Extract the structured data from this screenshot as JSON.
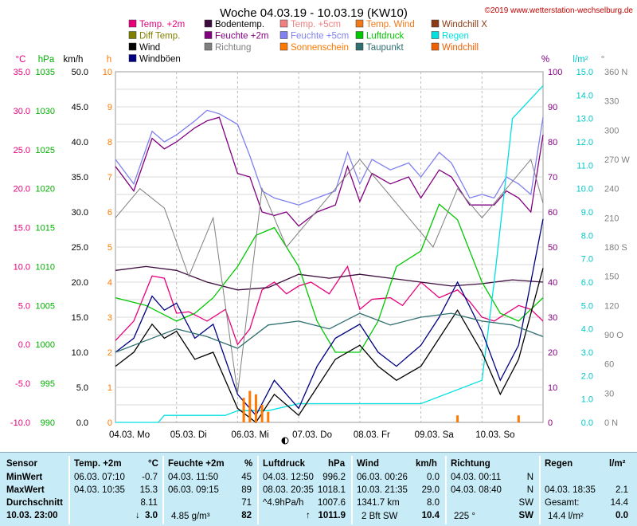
{
  "header": {
    "title": "Woche 04.03.19 - 10.03.19 (KW10)",
    "copyright": "©2019 www.wetterstation-wechselburg.de"
  },
  "legend": [
    {
      "label": "Temp. +2m",
      "color": "#e8007a"
    },
    {
      "label": "Bodentemp.",
      "color": "#3c0a3c"
    },
    {
      "label": "Temp. +5cm",
      "color": "#f08080"
    },
    {
      "label": "Temp. Wind",
      "color": "#f07818"
    },
    {
      "label": "Windchill X",
      "color": "#8b3a14"
    },
    {
      "label": "Diff Temp.",
      "color": "#808000"
    },
    {
      "label": "Feuchte +2m",
      "color": "#800080"
    },
    {
      "label": "Feuchte +5cm",
      "color": "#8080f0"
    },
    {
      "label": "Luftdruck",
      "color": "#00c800"
    },
    {
      "label": "Regen",
      "color": "#00e0e0"
    },
    {
      "label": "Wind",
      "color": "#000000"
    },
    {
      "label": "Richtung",
      "color": "#808080"
    },
    {
      "label": "Sonnenschein",
      "color": "#ff7800"
    },
    {
      "label": "Taupunkt",
      "color": "#2f6f6f"
    },
    {
      "label": "Windchill",
      "color": "#f06000"
    },
    {
      "label": "Windböen",
      "color": "#000080"
    }
  ],
  "chart_data": {
    "type": "line",
    "title": "Woche 04.03.19 - 10.03.19 (KW10)",
    "x_labels": [
      "04.03. Mo",
      "05.03. Di",
      "06.03. Mi",
      "07.03. Do",
      "08.03. Fr",
      "09.03. Sa",
      "10.03. So"
    ],
    "axes": {
      "temp_c": {
        "unit": "°C",
        "color": "#e8007a",
        "ticks": [
          "35.0",
          "30.0",
          "25.0",
          "20.0",
          "15.0",
          "10.0",
          "5.0",
          "0.0",
          "-5.0",
          "-10.0"
        ]
      },
      "pressure_hpa": {
        "unit": "hPa",
        "color": "#00b000",
        "ticks": [
          "1035",
          "1030",
          "1025",
          "1020",
          "1015",
          "1010",
          "1005",
          "1000",
          "995",
          "990"
        ]
      },
      "wind_kmh": {
        "unit": "km/h",
        "color": "#000000",
        "ticks": [
          "50.0",
          "45.0",
          "40.0",
          "35.0",
          "30.0",
          "25.0",
          "20.0",
          "15.0",
          "10.0",
          "5.0",
          "0.0"
        ]
      },
      "sun_h": {
        "unit": "h",
        "color": "#ff7800",
        "ticks": [
          "10",
          "9",
          "8",
          "7",
          "6",
          "5",
          "4",
          "3",
          "2",
          "1",
          "0"
        ]
      },
      "humidity_pct": {
        "unit": "%",
        "color": "#800080",
        "ticks": [
          "100",
          "90",
          "80",
          "70",
          "60",
          "50",
          "40",
          "30",
          "20",
          "10",
          "0"
        ]
      },
      "rain_lm2": {
        "unit": "l/m²",
        "color": "#00c8c8",
        "ticks": [
          "15.0",
          "14.0",
          "13.0",
          "12.0",
          "11.0",
          "10.0",
          "9.0",
          "8.0",
          "7.0",
          "6.0",
          "5.0",
          "4.0",
          "3.0",
          "2.0",
          "1.0",
          "0.0"
        ]
      },
      "direction": {
        "unit": "°",
        "color": "#808080",
        "ticks": [
          "360 N",
          "330",
          "300",
          "270 W",
          "240",
          "210",
          "180 S",
          "150",
          "120",
          "90 O",
          "60",
          "30",
          "0 N"
        ]
      }
    },
    "series": [
      {
        "name": "Temp. +2m",
        "color": "#e8007a",
        "unit": "°C",
        "x": [
          0,
          0.3,
          0.6,
          0.8,
          1,
          1.2,
          1.5,
          1.8,
          2,
          2.2,
          2.4,
          2.6,
          2.8,
          3,
          3.2,
          3.5,
          3.8,
          4,
          4.2,
          4.5,
          4.7,
          5,
          5.3,
          5.6,
          5.8,
          6,
          6.2,
          6.4,
          6.6,
          6.8,
          7
        ],
        "y": [
          0.5,
          3,
          8.8,
          8.5,
          4,
          4.2,
          3,
          4.5,
          0,
          2,
          7,
          8,
          6.5,
          7.5,
          8,
          6.5,
          10,
          4.5,
          5.8,
          6,
          5,
          8,
          6,
          7,
          5.5,
          3.5,
          3,
          4,
          5,
          4.5,
          3
        ]
      },
      {
        "name": "Bodentemp.",
        "color": "#3c0a3c",
        "unit": "°C",
        "x": [
          0,
          0.5,
          1,
          1.5,
          2,
          2.5,
          3,
          3.5,
          4,
          4.5,
          5,
          5.5,
          6,
          6.5,
          7
        ],
        "y": [
          9.5,
          10,
          9.5,
          8,
          7,
          7.3,
          9,
          8.5,
          9,
          8.5,
          8,
          7.5,
          7.8,
          8.3,
          8
        ]
      },
      {
        "name": "Feuchte +2m",
        "color": "#800080",
        "unit": "%",
        "x": [
          0,
          0.3,
          0.6,
          0.8,
          1,
          1.3,
          1.5,
          1.7,
          2,
          2.2,
          2.4,
          2.6,
          2.8,
          3,
          3.3,
          3.6,
          3.8,
          4,
          4.2,
          4.5,
          4.8,
          5,
          5.3,
          5.5,
          5.8,
          6,
          6.2,
          6.4,
          6.6,
          6.8,
          7
        ],
        "y": [
          73,
          66,
          81,
          78,
          80,
          84,
          86,
          87,
          71,
          70,
          60,
          59,
          60,
          56,
          60,
          62,
          73,
          63,
          71,
          68,
          70,
          64,
          72,
          70,
          62,
          62,
          62,
          66,
          64,
          60,
          82
        ]
      },
      {
        "name": "Feuchte +5cm",
        "color": "#8080f0",
        "unit": "%",
        "x": [
          0,
          0.3,
          0.6,
          0.8,
          1,
          1.3,
          1.5,
          1.7,
          2,
          2.2,
          2.4,
          2.6,
          2.8,
          3,
          3.3,
          3.6,
          3.8,
          4,
          4.2,
          4.5,
          4.8,
          5,
          5.3,
          5.5,
          5.8,
          6,
          6.2,
          6.4,
          6.6,
          6.8,
          7
        ],
        "y": [
          75,
          68,
          83,
          80,
          82,
          86,
          89,
          88,
          85,
          76,
          66,
          64,
          63,
          62,
          64,
          66,
          77,
          68,
          75,
          72,
          74,
          70,
          77,
          74,
          64,
          65,
          64,
          70,
          68,
          65,
          87
        ]
      },
      {
        "name": "Luftdruck",
        "color": "#00c800",
        "unit": "hPa",
        "x": [
          0,
          0.5,
          1,
          1.3,
          1.6,
          2,
          2.3,
          2.6,
          3,
          3.3,
          3.6,
          4,
          4.3,
          4.6,
          5,
          5.3,
          5.6,
          6,
          6.3,
          6.6,
          7
        ],
        "y": [
          1006,
          1005,
          1003,
          1004,
          1006,
          1010,
          1014,
          1015,
          1010,
          1003,
          999,
          999,
          1003,
          1010,
          1012,
          1018,
          1016,
          1008,
          1004,
          1003,
          1006
        ]
      },
      {
        "name": "Regen",
        "color": "#00e0e0",
        "unit": "l/m²",
        "x": [
          0,
          0.7,
          0.8,
          1.8,
          2.0,
          2.5,
          3.0,
          4.0,
          5.0,
          6.0,
          6.2,
          6.5,
          7
        ],
        "y": [
          0,
          0,
          0.3,
          0.3,
          0.5,
          0.5,
          0.8,
          0.8,
          0.8,
          1.8,
          6,
          13,
          14.4
        ]
      },
      {
        "name": "Wind",
        "color": "#000000",
        "unit": "km/h",
        "x": [
          0,
          0.3,
          0.6,
          0.8,
          1,
          1.3,
          1.6,
          2,
          2.3,
          2.6,
          3,
          3.3,
          3.6,
          4,
          4.3,
          4.6,
          5,
          5.3,
          5.6,
          6,
          6.3,
          6.6,
          7
        ],
        "y": [
          8,
          10,
          14,
          12,
          13,
          9,
          10,
          2,
          0,
          4,
          1,
          5,
          9,
          11,
          8,
          6,
          8,
          12,
          16,
          10,
          4,
          9,
          22
        ]
      },
      {
        "name": "Windböen",
        "color": "#000080",
        "unit": "km/h",
        "x": [
          0,
          0.3,
          0.6,
          0.8,
          1,
          1.3,
          1.6,
          2,
          2.3,
          2.6,
          3,
          3.3,
          3.6,
          4,
          4.3,
          4.6,
          5,
          5.3,
          5.6,
          6,
          6.3,
          6.6,
          7
        ],
        "y": [
          10,
          12,
          18,
          16,
          17,
          12,
          14,
          4,
          1,
          6,
          2,
          8,
          12,
          14,
          10,
          8,
          11,
          15,
          20,
          13,
          6,
          11,
          29
        ]
      },
      {
        "name": "Richtung",
        "color": "#808080",
        "unit": "°",
        "x": [
          0,
          0.4,
          0.8,
          1.2,
          1.6,
          2,
          2.4,
          2.8,
          3.2,
          3.6,
          4,
          4.4,
          4.8,
          5.2,
          5.6,
          6,
          6.4,
          6.8,
          7
        ],
        "y": [
          210,
          240,
          220,
          150,
          210,
          30,
          240,
          180,
          210,
          240,
          270,
          240,
          210,
          180,
          240,
          210,
          240,
          270,
          225
        ]
      },
      {
        "name": "Taupunkt",
        "color": "#2f6f6f",
        "unit": "°C",
        "x": [
          0,
          0.5,
          1,
          1.5,
          2,
          2.5,
          3,
          3.5,
          4,
          4.5,
          5,
          5.5,
          6,
          6.5,
          7
        ],
        "y": [
          -1,
          0.5,
          2,
          1,
          -0.5,
          2.5,
          3,
          2,
          4,
          2.5,
          3.5,
          4,
          3,
          2.5,
          1
        ]
      },
      {
        "name": "Sonnenschein",
        "color": "#ff7800",
        "unit": "h",
        "x": [
          2.1,
          2.2,
          2.3,
          2.4,
          2.5,
          5.6,
          6.6
        ],
        "y": [
          0.7,
          0.9,
          0.8,
          0.5,
          0.3,
          0.2,
          0.2
        ]
      }
    ]
  },
  "table": {
    "headers": {
      "sensor": "Sensor",
      "temp": "Temp. +2m",
      "temp_unit": "°C",
      "feuchte": "Feuchte +2m",
      "feuchte_unit": "%",
      "luftdruck": "Luftdruck",
      "luftdruck_unit": "hPa",
      "wind": "Wind",
      "wind_unit": "km/h",
      "richtung": "Richtung",
      "regen": "Regen",
      "regen_unit": "l/m²"
    },
    "row_labels": {
      "min": "MinWert",
      "max": "MaxWert",
      "avg": "Durchschnitt",
      "now": "10.03. 23:00"
    },
    "temp": {
      "min_time": "06.03. 07:10",
      "min_val": "-0.7",
      "max_time": "04.03. 10:35",
      "max_val": "15.3",
      "avg": "8.11",
      "now": "3.0",
      "trend": "↓"
    },
    "feuchte": {
      "min_time": "04.03. 11:50",
      "min_val": "45",
      "max_time": "06.03. 09:15",
      "max_val": "89",
      "avg": "71",
      "abs": "4.85 g/m³",
      "now": "82"
    },
    "luftdruck": {
      "min_time": "04.03. 12:50",
      "min_val": "996.2",
      "max_time": "08.03. 20:35",
      "max_val": "1018.1",
      "delta": "^4.9hPa/h",
      "avg": "1007.6",
      "now": "1011.9",
      "trend": "↑"
    },
    "wind": {
      "min_time": "06.03. 00:26",
      "min_val": "0.0",
      "max_time": "10.03. 21:35",
      "max_val": "29.0",
      "dist": "1341.7 km",
      "avg": "8.0",
      "bft": "2 Bft SW",
      "now": "10.4"
    },
    "richtung": {
      "min_time": "04.03. 00:11",
      "min_val": "N",
      "max_time": "04.03. 08:40",
      "max_val": "N",
      "avg": "SW",
      "now_deg": "225 °",
      "now": "SW"
    },
    "regen": {
      "max_time": "04.03. 18:35",
      "max_val": "2.1",
      "total_label": "Gesamt:",
      "total": "14.4",
      "now_label": "14.4 l/m²",
      "now": "0.0"
    }
  }
}
